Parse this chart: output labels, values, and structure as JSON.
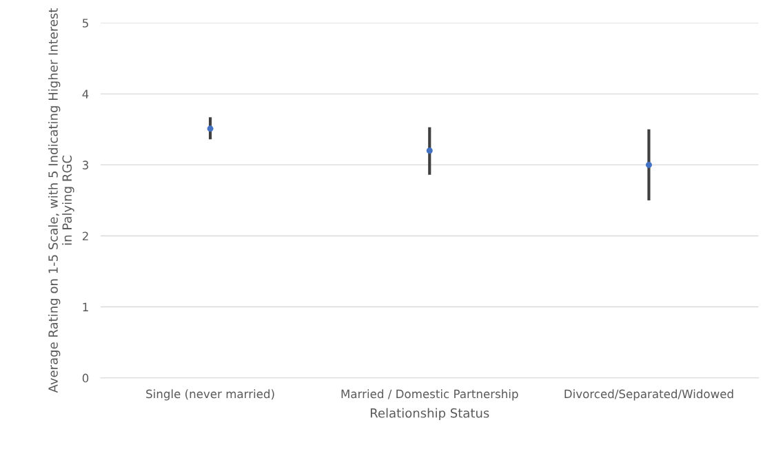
{
  "chart_data": {
    "type": "scatter",
    "xlabel": "Relationship Status",
    "ylabel": "Average Rating on 1-5 Scale, with 5 Indicating Higher Interest in Palying RGC",
    "categories": [
      "Single (never married)",
      "Married / Domestic Partnership",
      "Divorced/Separated/Widowed"
    ],
    "series": [
      {
        "color": "#4472c4",
        "values": [
          3.51,
          3.2,
          3.0
        ],
        "errors": [
          [
            3.36,
            3.67
          ],
          [
            2.86,
            3.53
          ],
          [
            2.5,
            3.5
          ]
        ]
      }
    ],
    "ylim": [
      0,
      5
    ],
    "yticks": [
      0,
      1,
      2,
      3,
      4,
      5
    ],
    "grid": "y",
    "marker": "circle"
  }
}
